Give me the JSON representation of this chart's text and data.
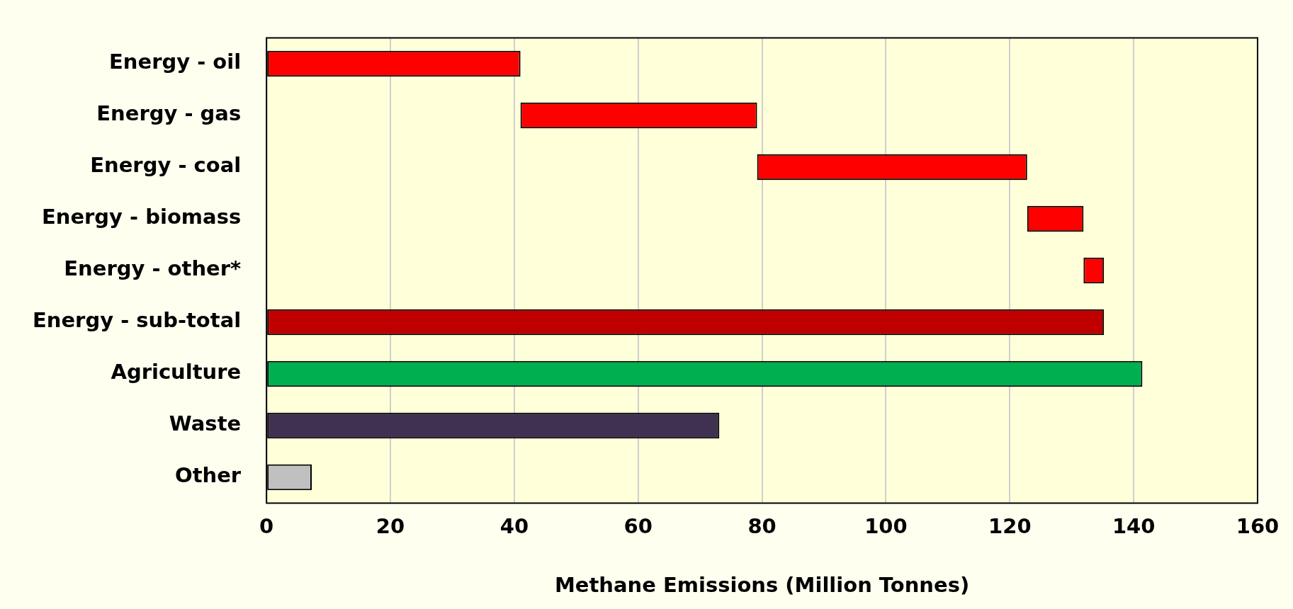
{
  "chart_data": {
    "type": "bar",
    "orientation": "horizontal",
    "xlabel": "Methane Emissions (Million Tonnes)",
    "categories": [
      "Energy - oil",
      "Energy - gas",
      "Energy - coal",
      "Energy - biomass",
      "Energy - other*",
      "Energy - sub-total",
      "Agriculture",
      "Waste",
      "Other"
    ],
    "base": [
      0,
      41,
      79.2,
      122.8,
      131.9,
      0,
      0,
      0,
      0
    ],
    "values": [
      41,
      38.2,
      43.6,
      9.1,
      3.3,
      135.2,
      141.4,
      73.1,
      7.3
    ],
    "colors": [
      "#ff0000",
      "#ff0000",
      "#ff0000",
      "#ff0000",
      "#ff0000",
      "#c00000",
      "#00b050",
      "#403151",
      "#c0c0c0"
    ],
    "xlim": [
      0,
      160
    ],
    "xticks": [
      0,
      20,
      40,
      60,
      80,
      100,
      120,
      140,
      160
    ],
    "grid": "x",
    "legend": false
  }
}
